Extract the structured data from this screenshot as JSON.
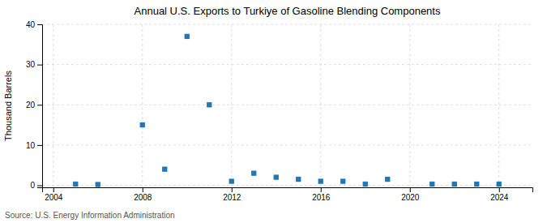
{
  "chart_data": {
    "type": "scatter",
    "title": "Annual U.S. Exports to Turkiye of Gasoline Blending Components",
    "ylabel": "Thousand Barrels",
    "annotations": [
      "Source: U.S. Energy Information Administration"
    ],
    "x": [
      2005,
      2006,
      2008,
      2009,
      2010,
      2011,
      2012,
      2013,
      2014,
      2015,
      2016,
      2017,
      2018,
      2019,
      2021,
      2022,
      2023,
      2024
    ],
    "values": [
      0.3,
      0.2,
      15.0,
      4.0,
      37.0,
      20.0,
      1.0,
      3.0,
      2.0,
      1.5,
      1.0,
      1.0,
      0.3,
      1.5,
      0.3,
      0.3,
      0.3,
      0.3
    ],
    "marker": "square",
    "xlim": [
      2003.5,
      2025.5
    ],
    "ylim": [
      -0.5,
      40
    ],
    "xticks": [
      2004,
      2008,
      2012,
      2016,
      2020,
      2024
    ],
    "yticks": [
      0,
      10,
      20,
      30,
      40
    ],
    "grid": true
  }
}
